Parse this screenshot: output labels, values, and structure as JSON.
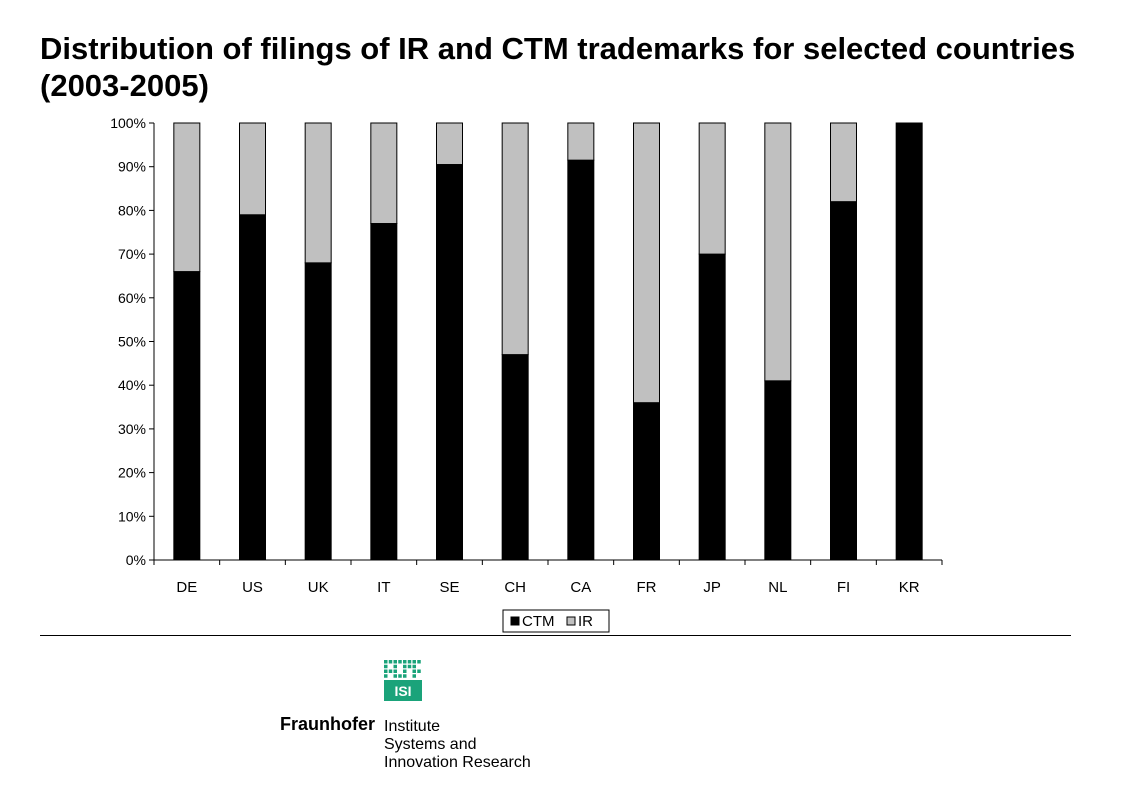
{
  "title": "Distribution of filings of IR and CTM trademarks for selected countries (2003-2005)",
  "chart_data": {
    "type": "bar",
    "stacked": true,
    "percent_stacked": true,
    "categories": [
      "DE",
      "US",
      "UK",
      "IT",
      "SE",
      "CH",
      "CA",
      "FR",
      "JP",
      "NL",
      "FI",
      "KR"
    ],
    "series": [
      {
        "name": "CTM",
        "color": "#000000",
        "values": [
          66,
          79,
          68,
          77,
          90.5,
          47,
          91.5,
          36,
          70,
          41,
          82,
          100
        ]
      },
      {
        "name": "IR",
        "color": "#c0c0c0",
        "values": [
          34,
          21,
          32,
          23,
          9.5,
          53,
          8.5,
          64,
          30,
          59,
          18,
          0
        ]
      }
    ],
    "y_ticks": [
      "0%",
      "10%",
      "20%",
      "30%",
      "40%",
      "50%",
      "60%",
      "70%",
      "80%",
      "90%",
      "100%"
    ],
    "ylim": [
      0,
      100
    ],
    "grid": false,
    "legend": "bottom"
  },
  "logo": {
    "mark_text": "ISI",
    "org_name": "Fraunhofer",
    "org_lines": [
      "Institute",
      "Systems and",
      "Innovation Research"
    ],
    "mark_color": "#1aa37a"
  }
}
